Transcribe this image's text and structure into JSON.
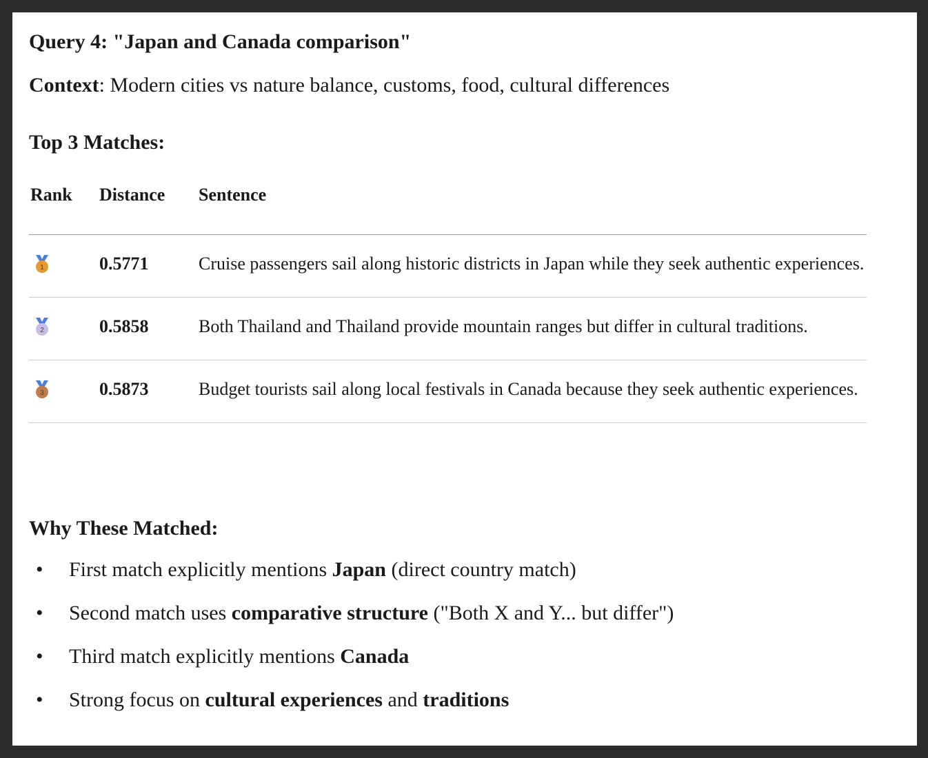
{
  "title": "Query 4: \"Japan and Canada comparison\"",
  "context": {
    "label": "Context",
    "text": ": Modern cities vs nature balance, customs, food, cultural differences"
  },
  "matches_heading": "Top 3 Matches:",
  "table": {
    "headers": [
      "Rank",
      "Distance",
      "Sentence"
    ],
    "rows": [
      {
        "rank_icon": "gold-medal-1",
        "distance": "0.5771",
        "sentence": "Cruise passengers sail along historic districts in Japan while they seek authentic experiences."
      },
      {
        "rank_icon": "silver-medal-2",
        "distance": "0.5858",
        "sentence": "Both Thailand and Thailand provide mountain ranges but differ in cultural traditions."
      },
      {
        "rank_icon": "bronze-medal-3",
        "distance": "0.5873",
        "sentence": "Budget tourists sail along local festivals in Canada because they seek authentic experiences."
      }
    ]
  },
  "why_heading": "Why These Matched:",
  "bullets": [
    [
      {
        "t": "First match explicitly mentions "
      },
      {
        "t": "Japan",
        "b": true
      },
      {
        "t": " (direct country match)"
      }
    ],
    [
      {
        "t": "Second match uses "
      },
      {
        "t": "comparative structure",
        "b": true
      },
      {
        "t": " (\"Both X and Y... but differ\")"
      }
    ],
    [
      {
        "t": "Third match explicitly mentions "
      },
      {
        "t": "Canada",
        "b": true
      }
    ],
    [
      {
        "t": "Strong focus on "
      },
      {
        "t": "cultural experiences",
        "b": true
      },
      {
        "t": " and "
      },
      {
        "t": "traditions",
        "b": true
      }
    ]
  ],
  "colors": {
    "gold": "#e39a34",
    "silver": "#c9bfe6",
    "bronze": "#c27a4a",
    "ribbon": "#4a7fe0"
  }
}
